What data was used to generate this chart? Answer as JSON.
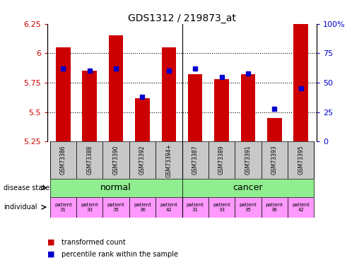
{
  "title": "GDS1312 / 219873_at",
  "samples": [
    "GSM73386",
    "GSM73388",
    "GSM73390",
    "GSM73392",
    "GSM73394+",
    "GSM73387",
    "GSM73389",
    "GSM73391",
    "GSM73393",
    "GSM73395"
  ],
  "bar_values": [
    6.05,
    5.85,
    6.15,
    5.62,
    6.05,
    5.82,
    5.78,
    5.82,
    5.45,
    6.25
  ],
  "percentile_ranks": [
    62,
    60,
    62,
    38,
    60,
    62,
    55,
    58,
    28,
    45
  ],
  "ymin": 5.25,
  "ymax": 6.25,
  "yticks": [
    5.25,
    5.5,
    5.75,
    6.0,
    6.25
  ],
  "ytick_labels": [
    "5.25",
    "5.5",
    "5.75",
    "6",
    "6.25"
  ],
  "right_yticks": [
    0,
    25,
    50,
    75,
    100
  ],
  "right_ytick_labels": [
    "0",
    "25",
    "50",
    "75",
    "100%"
  ],
  "individuals": [
    "patient\n31",
    "patient\n33",
    "patient\n35",
    "patient\n36",
    "patient\n42",
    "patient\n31",
    "patient\n33",
    "patient\n35",
    "patient\n36",
    "patient\n42"
  ],
  "bar_color": "#CC0000",
  "percentile_color": "#0000CC",
  "sample_bg_color": "#C8C8C8",
  "normal_color": "#90EE90",
  "individual_color": "#FF99FF",
  "left_tick_color": "#CC0000",
  "right_tick_color": "#0000CC"
}
